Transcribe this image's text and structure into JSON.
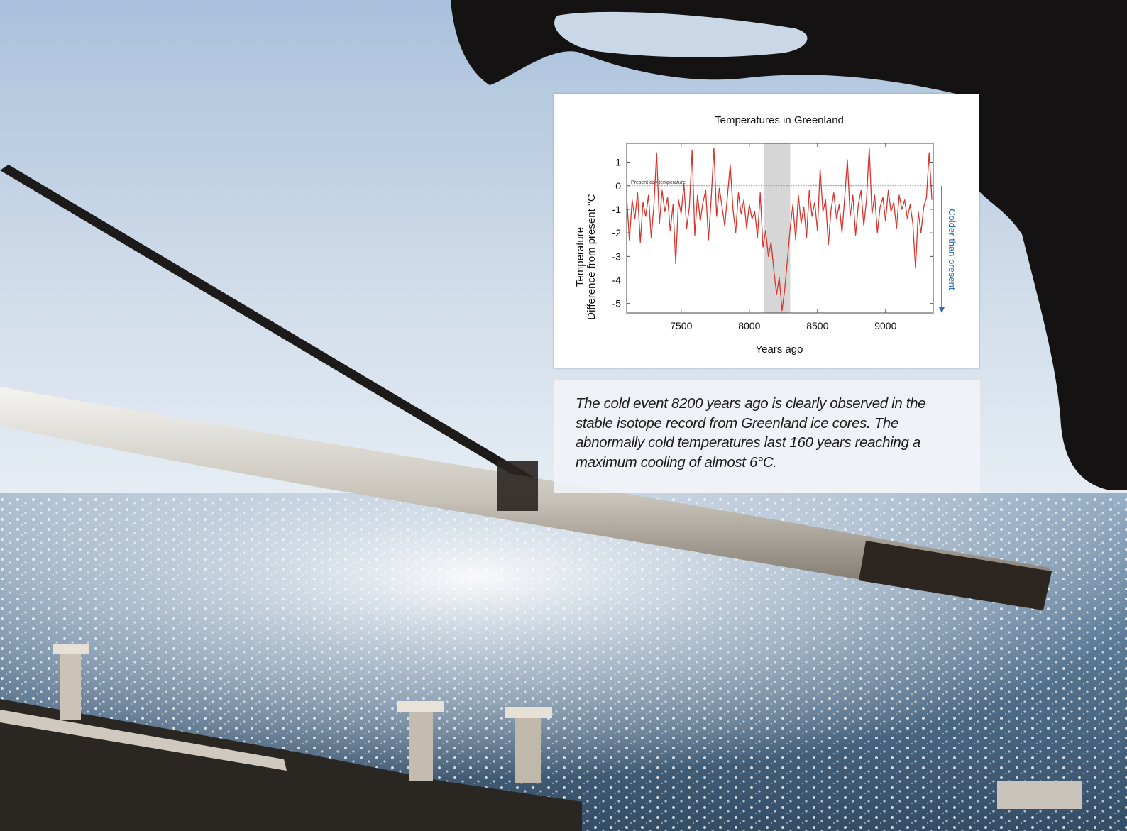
{
  "colors": {
    "line": "#d9332a",
    "highlight": "#d6d6d6",
    "arrow": "#2e6db4"
  },
  "chart_data": {
    "type": "line",
    "title": "Temperatures in Greenland",
    "xlabel": "Years ago",
    "ylabel_line1": "Temperature",
    "ylabel_line2": "Difference from present °C",
    "xlim": [
      7100,
      9350
    ],
    "ylim": [
      -5.4,
      1.8
    ],
    "xticks": [
      7500,
      8000,
      8500,
      9000
    ],
    "xtick_labels": [
      "7500",
      "8000",
      "8500",
      "9000"
    ],
    "yticks": [
      1,
      0,
      -1,
      -2,
      -3,
      -4,
      -5
    ],
    "ytick_labels": [
      "1",
      "0",
      "-1",
      "-2",
      "-3",
      "-4",
      "-5"
    ],
    "reference_line": {
      "y": 0,
      "label": "Present day temperature"
    },
    "highlight_region": [
      8110,
      8300
    ],
    "arrow_label": "Colder than present",
    "grid": false,
    "series": [
      {
        "x": [
          7100,
          7120,
          7140,
          7160,
          7180,
          7200,
          7220,
          7240,
          7260,
          7280,
          7300,
          7320,
          7340,
          7360,
          7380,
          7400,
          7420,
          7440,
          7460,
          7480,
          7500,
          7520,
          7540,
          7560,
          7580,
          7600,
          7620,
          7640,
          7660,
          7680,
          7700,
          7720,
          7740,
          7760,
          7780,
          7800,
          7820,
          7840,
          7860,
          7880,
          7900,
          7920,
          7940,
          7960,
          7980,
          8000,
          8020,
          8040,
          8060,
          8080,
          8100,
          8120,
          8140,
          8160,
          8180,
          8200,
          8220,
          8240,
          8260,
          8280,
          8300,
          8320,
          8340,
          8360,
          8380,
          8400,
          8420,
          8440,
          8460,
          8480,
          8500,
          8520,
          8540,
          8560,
          8580,
          8600,
          8620,
          8640,
          8660,
          8680,
          8700,
          8720,
          8740,
          8760,
          8780,
          8800,
          8820,
          8840,
          8860,
          8880,
          8900,
          8920,
          8940,
          8960,
          8980,
          9000,
          9020,
          9040,
          9060,
          9080,
          9100,
          9120,
          9140,
          9160,
          9180,
          9200,
          9220,
          9240,
          9260,
          9280,
          9300,
          9320,
          9340
        ],
        "values": [
          -0.5,
          -2.3,
          -0.6,
          -1.4,
          -0.3,
          -2.4,
          -0.7,
          -1.3,
          -0.4,
          -2.2,
          -0.8,
          1.4,
          -1.6,
          -0.2,
          -1.1,
          -0.5,
          -1.9,
          -0.8,
          -3.3,
          -0.6,
          -1.2,
          0.1,
          -1.8,
          -0.9,
          1.5,
          -2.1,
          -0.4,
          -1.5,
          -0.7,
          -0.2,
          -2.3,
          -0.6,
          1.6,
          -1.3,
          -0.1,
          -0.9,
          -1.7,
          -0.4,
          0.9,
          -1.0,
          -2.0,
          -0.3,
          -1.2,
          -0.6,
          -1.8,
          -0.8,
          -1.4,
          -1.1,
          -2.2,
          -0.3,
          -2.6,
          -1.9,
          -3.0,
          -2.4,
          -3.6,
          -4.6,
          -3.9,
          -5.3,
          -4.4,
          -3.1,
          -1.8,
          -0.8,
          -2.3,
          -0.4,
          -1.6,
          -0.9,
          -2.2,
          -0.2,
          -1.3,
          -0.7,
          -1.9,
          0.7,
          -1.1,
          -0.6,
          -2.5,
          -1.0,
          -0.3,
          -1.4,
          -0.8,
          -2.0,
          -0.5,
          1.1,
          -1.3,
          -0.4,
          -2.1,
          -0.8,
          -0.2,
          -1.7,
          -0.6,
          1.6,
          -1.2,
          -0.4,
          -2.0,
          -0.9,
          -0.5,
          -1.5,
          -0.2,
          -1.1,
          -0.7,
          -1.8,
          -0.4,
          -1.0,
          -0.6,
          -1.4,
          -0.8,
          -1.6,
          -3.5,
          -1.1,
          -2.0,
          -0.9,
          -0.5,
          1.4,
          -0.6
        ]
      }
    ]
  },
  "caption": "The cold event 8200 years ago is clearly observed in the stable isotope record from Greenland ice cores. The abnormally cold temperatures last 160 years reaching a maximum cooling of almost 6°C."
}
